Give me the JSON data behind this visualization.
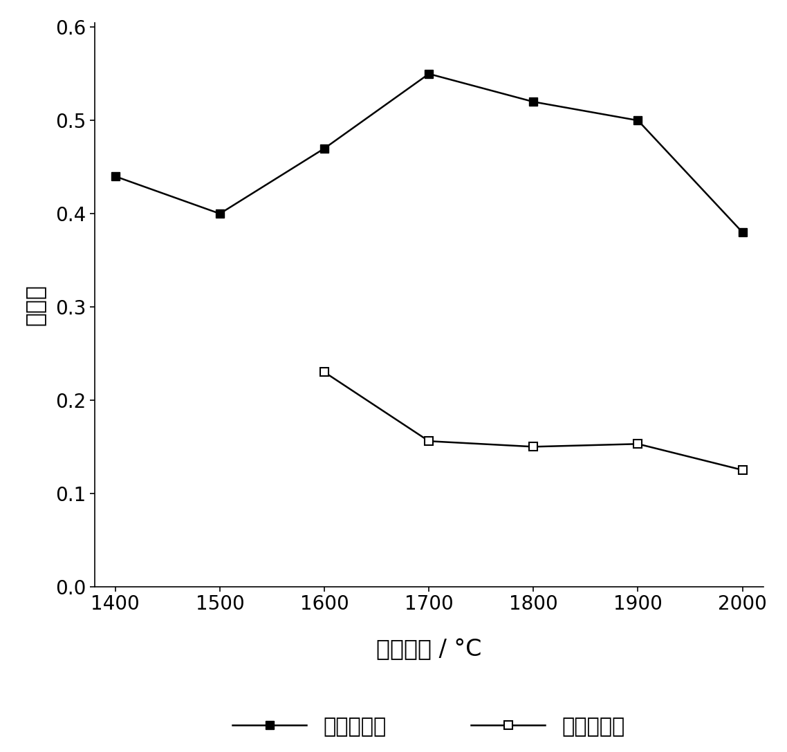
{
  "x": [
    1400,
    1500,
    1600,
    1700,
    1800,
    1900,
    2000
  ],
  "y_with_mannitol": [
    0.44,
    0.4,
    0.47,
    0.55,
    0.52,
    0.5,
    0.38
  ],
  "y_without_mannitol": [
    null,
    null,
    0.23,
    0.156,
    0.15,
    0.153,
    0.125
  ],
  "ylabel": "吸光度",
  "xlabel": "灰化温度 / °C",
  "legend_with": "加入甘露醇",
  "legend_without": "不加甘露醇",
  "ylim": [
    0.0,
    0.6
  ],
  "xlim": [
    1400,
    2000
  ],
  "yticks": [
    0.0,
    0.1,
    0.2,
    0.3,
    0.4,
    0.5,
    0.6
  ],
  "xticks": [
    1400,
    1500,
    1600,
    1700,
    1800,
    1900,
    2000
  ],
  "line_color": "#000000",
  "linewidth": 1.8,
  "markersize": 8,
  "label_fontsize": 24,
  "tick_fontsize": 20,
  "legend_fontsize": 22
}
